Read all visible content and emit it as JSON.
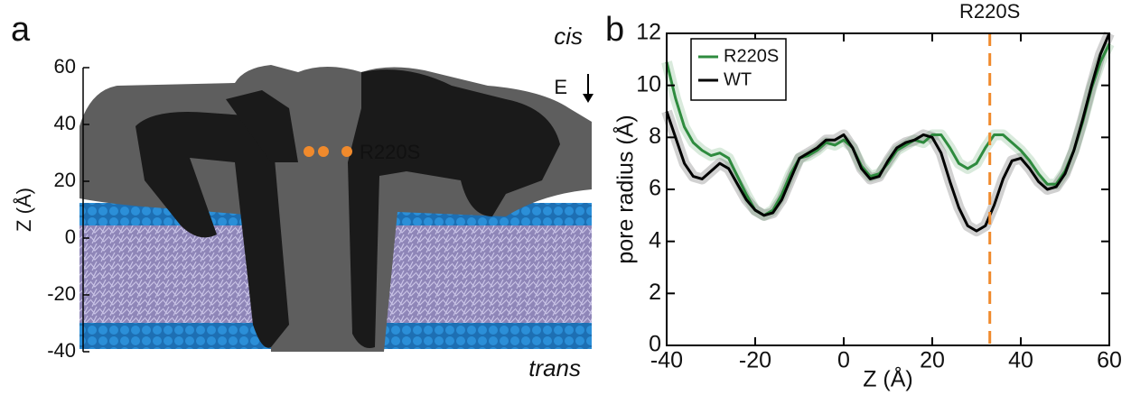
{
  "chart_data": [
    {
      "type": "structure",
      "panel_label": "a",
      "ylabel": "Z (Å)",
      "ylim": [
        -40,
        60
      ],
      "yticks": [
        -40,
        -20,
        0,
        20,
        40,
        60
      ],
      "annotations": {
        "cis": "cis",
        "trans": "trans",
        "field": "E",
        "mutation": "R220S"
      },
      "mutation_color": "#f08a2c"
    },
    {
      "type": "line",
      "panel_label": "b",
      "xlabel": "Z (Å)",
      "ylabel": "pore radius (Å)",
      "xlim": [
        -40,
        60
      ],
      "ylim": [
        0,
        12
      ],
      "xticks": [
        -40,
        -20,
        0,
        20,
        40,
        60
      ],
      "yticks": [
        0,
        2,
        4,
        6,
        8,
        10,
        12
      ],
      "legend": "upper left",
      "x": [
        -40,
        -38,
        -36,
        -34,
        -32,
        -30,
        -28,
        -26,
        -24,
        -22,
        -20,
        -18,
        -16,
        -14,
        -12,
        -10,
        -8,
        -6,
        -4,
        -2,
        0,
        2,
        4,
        6,
        8,
        10,
        12,
        14,
        16,
        18,
        20,
        22,
        24,
        26,
        28,
        30,
        32,
        34,
        36,
        38,
        40,
        42,
        44,
        46,
        48,
        50,
        52,
        54,
        56,
        58,
        60
      ],
      "series": [
        {
          "name": "R220S",
          "color": "#2e8b3e",
          "values": [
            10.9,
            9.5,
            8.4,
            7.8,
            7.5,
            7.3,
            7.4,
            7.2,
            6.5,
            5.8,
            5.2,
            5.0,
            5.2,
            5.8,
            6.6,
            7.2,
            7.3,
            7.5,
            7.8,
            7.7,
            7.9,
            7.6,
            6.9,
            6.5,
            6.6,
            7.0,
            7.5,
            7.7,
            7.9,
            7.8,
            8.1,
            8.1,
            7.6,
            7.0,
            6.8,
            7.0,
            7.6,
            8.1,
            8.1,
            7.8,
            7.5,
            7.1,
            6.6,
            6.2,
            6.2,
            6.7,
            7.5,
            8.6,
            9.9,
            10.9,
            11.6
          ]
        },
        {
          "name": "WT",
          "color": "#000000",
          "values": [
            9.0,
            8.0,
            7.0,
            6.5,
            6.4,
            6.7,
            7.0,
            6.8,
            6.2,
            5.6,
            5.2,
            5.0,
            5.1,
            5.6,
            6.4,
            7.2,
            7.4,
            7.6,
            7.9,
            7.9,
            8.1,
            7.6,
            6.8,
            6.4,
            6.5,
            7.1,
            7.6,
            7.8,
            7.9,
            8.1,
            8.0,
            7.4,
            6.3,
            5.3,
            4.6,
            4.4,
            4.6,
            5.4,
            6.4,
            7.1,
            7.2,
            6.8,
            6.3,
            6.0,
            6.1,
            6.6,
            7.5,
            8.7,
            10.0,
            11.2,
            12.0
          ]
        }
      ],
      "vline": {
        "x": 33,
        "label": "R220S",
        "color": "#f08a2c"
      }
    }
  ]
}
